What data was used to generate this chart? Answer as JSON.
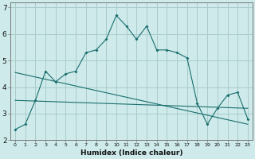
{
  "xlabel": "Humidex (Indice chaleur)",
  "background_color": "#ceeaea",
  "grid_color": "#aacccc",
  "line_color": "#1a6e6e",
  "x_values": [
    0,
    1,
    2,
    3,
    4,
    5,
    6,
    7,
    8,
    9,
    10,
    11,
    12,
    13,
    14,
    15,
    16,
    17,
    18,
    19,
    20,
    21,
    22,
    23
  ],
  "series1": [
    2.4,
    2.6,
    3.5,
    4.6,
    4.2,
    4.5,
    4.6,
    5.3,
    5.4,
    5.8,
    6.7,
    6.3,
    5.8,
    6.3,
    5.4,
    5.4,
    5.3,
    5.1,
    3.4,
    2.6,
    3.2,
    3.7,
    3.8,
    2.8
  ],
  "line2_x": [
    0,
    23
  ],
  "line2_y": [
    3.5,
    3.2
  ],
  "line3_x": [
    0,
    23
  ],
  "line3_y": [
    4.55,
    2.6
  ],
  "ylim": [
    2.0,
    7.2
  ],
  "xlim": [
    -0.5,
    23.5
  ],
  "yticks": [
    2,
    3,
    4,
    5,
    6,
    7
  ],
  "xticks": [
    0,
    1,
    2,
    3,
    4,
    5,
    6,
    7,
    8,
    9,
    10,
    11,
    12,
    13,
    14,
    15,
    16,
    17,
    18,
    19,
    20,
    21,
    22,
    23
  ]
}
